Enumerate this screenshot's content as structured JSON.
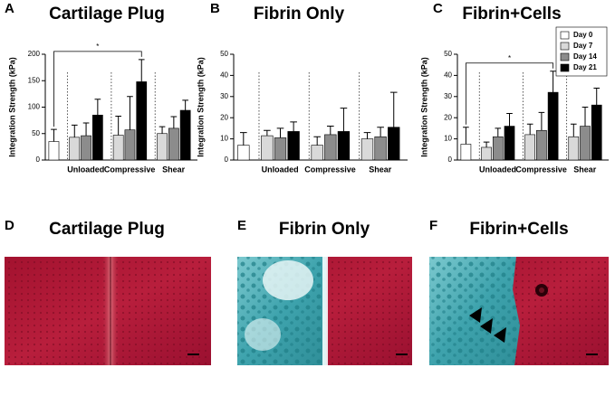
{
  "chart_data": [
    {
      "type": "bar",
      "panel": "A",
      "title": "Cartilage Plug",
      "ylabel": "Integration Strength (kPa)",
      "categories": [
        null,
        "Unloaded",
        "Compressive",
        "Shear"
      ],
      "series": [
        {
          "name": "Day 0",
          "color": "#ffffff",
          "values": [
            35,
            null,
            null,
            null
          ],
          "errors": [
            23,
            null,
            null,
            null
          ]
        },
        {
          "name": "Day 7",
          "color": "#d9d9d9",
          "values": [
            null,
            43,
            47,
            50
          ],
          "errors": [
            null,
            23,
            36,
            13
          ]
        },
        {
          "name": "Day 14",
          "color": "#8c8c8c",
          "values": [
            null,
            46,
            57,
            60
          ],
          "errors": [
            null,
            24,
            63,
            22
          ]
        },
        {
          "name": "Day 21",
          "color": "#000000",
          "values": [
            null,
            85,
            148,
            94
          ],
          "errors": [
            null,
            30,
            42,
            19
          ]
        }
      ],
      "ylim": [
        0,
        200
      ],
      "yticks": [
        0,
        50,
        100,
        150,
        200
      ],
      "significance": "*"
    },
    {
      "type": "bar",
      "panel": "B",
      "title": "Fibrin Only",
      "ylabel": "Integration Strength (kPa)",
      "categories": [
        null,
        "Unloaded",
        "Compressive",
        "Shear"
      ],
      "series": [
        {
          "name": "Day 0",
          "color": "#ffffff",
          "values": [
            7,
            null,
            null,
            null
          ],
          "errors": [
            6,
            null,
            null,
            null
          ]
        },
        {
          "name": "Day 7",
          "color": "#d9d9d9",
          "values": [
            null,
            11.5,
            7,
            10
          ],
          "errors": [
            null,
            2.5,
            4,
            3
          ]
        },
        {
          "name": "Day 14",
          "color": "#8c8c8c",
          "values": [
            null,
            10.5,
            12,
            11
          ],
          "errors": [
            null,
            4.5,
            4,
            4.5
          ]
        },
        {
          "name": "Day 21",
          "color": "#000000",
          "values": [
            null,
            13.5,
            13.5,
            15.5
          ],
          "errors": [
            null,
            4.5,
            11,
            16.5
          ]
        }
      ],
      "ylim": [
        0,
        50
      ],
      "yticks": [
        0,
        10,
        20,
        30,
        40,
        50
      ]
    },
    {
      "type": "bar",
      "panel": "C",
      "title": "Fibrin+Cells",
      "ylabel": "Integration Strength (kPa)",
      "categories": [
        null,
        "Unloaded",
        "Compressive",
        "Shear"
      ],
      "series": [
        {
          "name": "Day 0",
          "color": "#ffffff",
          "values": [
            7.5,
            null,
            null,
            null
          ],
          "errors": [
            8,
            null,
            null,
            null
          ]
        },
        {
          "name": "Day 7",
          "color": "#d9d9d9",
          "values": [
            null,
            6,
            12,
            11
          ],
          "errors": [
            null,
            2.5,
            5,
            6
          ]
        },
        {
          "name": "Day 14",
          "color": "#8c8c8c",
          "values": [
            null,
            11,
            14,
            16
          ],
          "errors": [
            null,
            4,
            8.5,
            9
          ]
        },
        {
          "name": "Day 21",
          "color": "#000000",
          "values": [
            null,
            16,
            32,
            26
          ],
          "errors": [
            null,
            6,
            10,
            8
          ]
        }
      ],
      "ylim": [
        0,
        50
      ],
      "yticks": [
        0,
        10,
        20,
        30,
        40,
        50
      ],
      "legend": "upper right",
      "significance": "*"
    }
  ],
  "image_panels": [
    {
      "label": "D",
      "title": "Cartilage Plug"
    },
    {
      "label": "E",
      "title": "Fibrin Only"
    },
    {
      "label": "F",
      "title": "Fibrin+Cells"
    }
  ]
}
